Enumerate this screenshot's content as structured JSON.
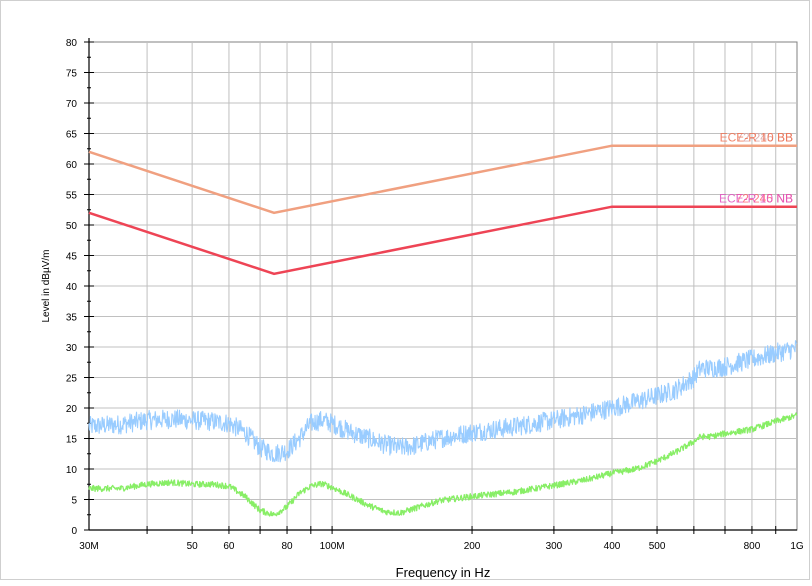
{
  "chart_data": {
    "type": "line",
    "xlabel": "Frequency in Hz",
    "ylabel": "Level in dBµV/m",
    "x_scale": "log",
    "xlim": [
      30000000,
      1000000000
    ],
    "ylim": [
      0,
      80
    ],
    "y_ticks": [
      0,
      5,
      10,
      15,
      20,
      25,
      30,
      35,
      40,
      45,
      50,
      55,
      60,
      65,
      70,
      75,
      80
    ],
    "x_ticks": [
      {
        "value": 30000000,
        "label": "30M"
      },
      {
        "value": 50000000,
        "label": "50"
      },
      {
        "value": 60000000,
        "label": "60"
      },
      {
        "value": 80000000,
        "label": "80"
      },
      {
        "value": 100000000,
        "label": "100M"
      },
      {
        "value": 200000000,
        "label": "200"
      },
      {
        "value": 300000000,
        "label": "300"
      },
      {
        "value": 400000000,
        "label": "400"
      },
      {
        "value": 500000000,
        "label": "500"
      },
      {
        "value": 800000000,
        "label": "800"
      },
      {
        "value": 1000000000,
        "label": "1G"
      }
    ],
    "grid": true,
    "limit_lines": [
      {
        "labels": [
          "ECE-R 10 BB",
          "72-245 BB"
        ],
        "color": "#f0a080",
        "x": [
          30000000,
          75000000,
          400000000,
          1000000000
        ],
        "y": [
          62,
          52,
          63,
          63
        ]
      },
      {
        "labels": [
          "ECE-R 10 NB",
          "72-245 NB"
        ],
        "color": "#ee4455",
        "x": [
          30000000,
          75000000,
          400000000,
          1000000000
        ],
        "y": [
          52,
          42,
          53,
          53
        ]
      }
    ],
    "label_colors": {
      "bb_front": "#f07050",
      "bb_back": "#d8a0a0",
      "nb_front": "#e050c0",
      "nb_back": "#ff6070"
    },
    "series": [
      {
        "color": "#99ccff",
        "noise": 1.6,
        "x": [
          30000000,
          35000000,
          40000000,
          45000000,
          50000000,
          55000000,
          60000000,
          65000000,
          70000000,
          75000000,
          80000000,
          85000000,
          90000000,
          95000000,
          100000000,
          110000000,
          120000000,
          130000000,
          140000000,
          150000000,
          170000000,
          200000000,
          250000000,
          300000000,
          350000000,
          400000000,
          450000000,
          500000000,
          550000000,
          600000000,
          620000000,
          650000000,
          700000000,
          800000000,
          900000000,
          1000000000
        ],
        "y": [
          17,
          17.3,
          18,
          18.2,
          18,
          17.8,
          17.5,
          16,
          13.5,
          12.5,
          13,
          15,
          17.5,
          18,
          17.5,
          16,
          15,
          14,
          13.5,
          13.8,
          15,
          16,
          17,
          18,
          19,
          20,
          21,
          22,
          23,
          25,
          26.5,
          26.5,
          26.8,
          28,
          29,
          29.8
        ]
      },
      {
        "color": "#88ee66",
        "noise": 0.5,
        "x": [
          30000000,
          35000000,
          40000000,
          45000000,
          50000000,
          55000000,
          60000000,
          65000000,
          70000000,
          75000000,
          80000000,
          85000000,
          90000000,
          95000000,
          100000000,
          110000000,
          120000000,
          130000000,
          140000000,
          150000000,
          170000000,
          200000000,
          250000000,
          300000000,
          350000000,
          400000000,
          450000000,
          500000000,
          550000000,
          600000000,
          620000000,
          650000000,
          700000000,
          800000000,
          900000000,
          1000000000
        ],
        "y": [
          6.8,
          6.8,
          7.5,
          7.8,
          7.5,
          7.5,
          7.2,
          5.5,
          3.2,
          2.5,
          3.8,
          6,
          7.2,
          7.6,
          7,
          5.5,
          4,
          3,
          2.8,
          3.5,
          4.8,
          5.5,
          6.3,
          7.3,
          8.2,
          9.3,
          10,
          11.3,
          12.8,
          14.5,
          15.3,
          15.3,
          15.8,
          16.5,
          17.8,
          18.8
        ]
      }
    ]
  }
}
